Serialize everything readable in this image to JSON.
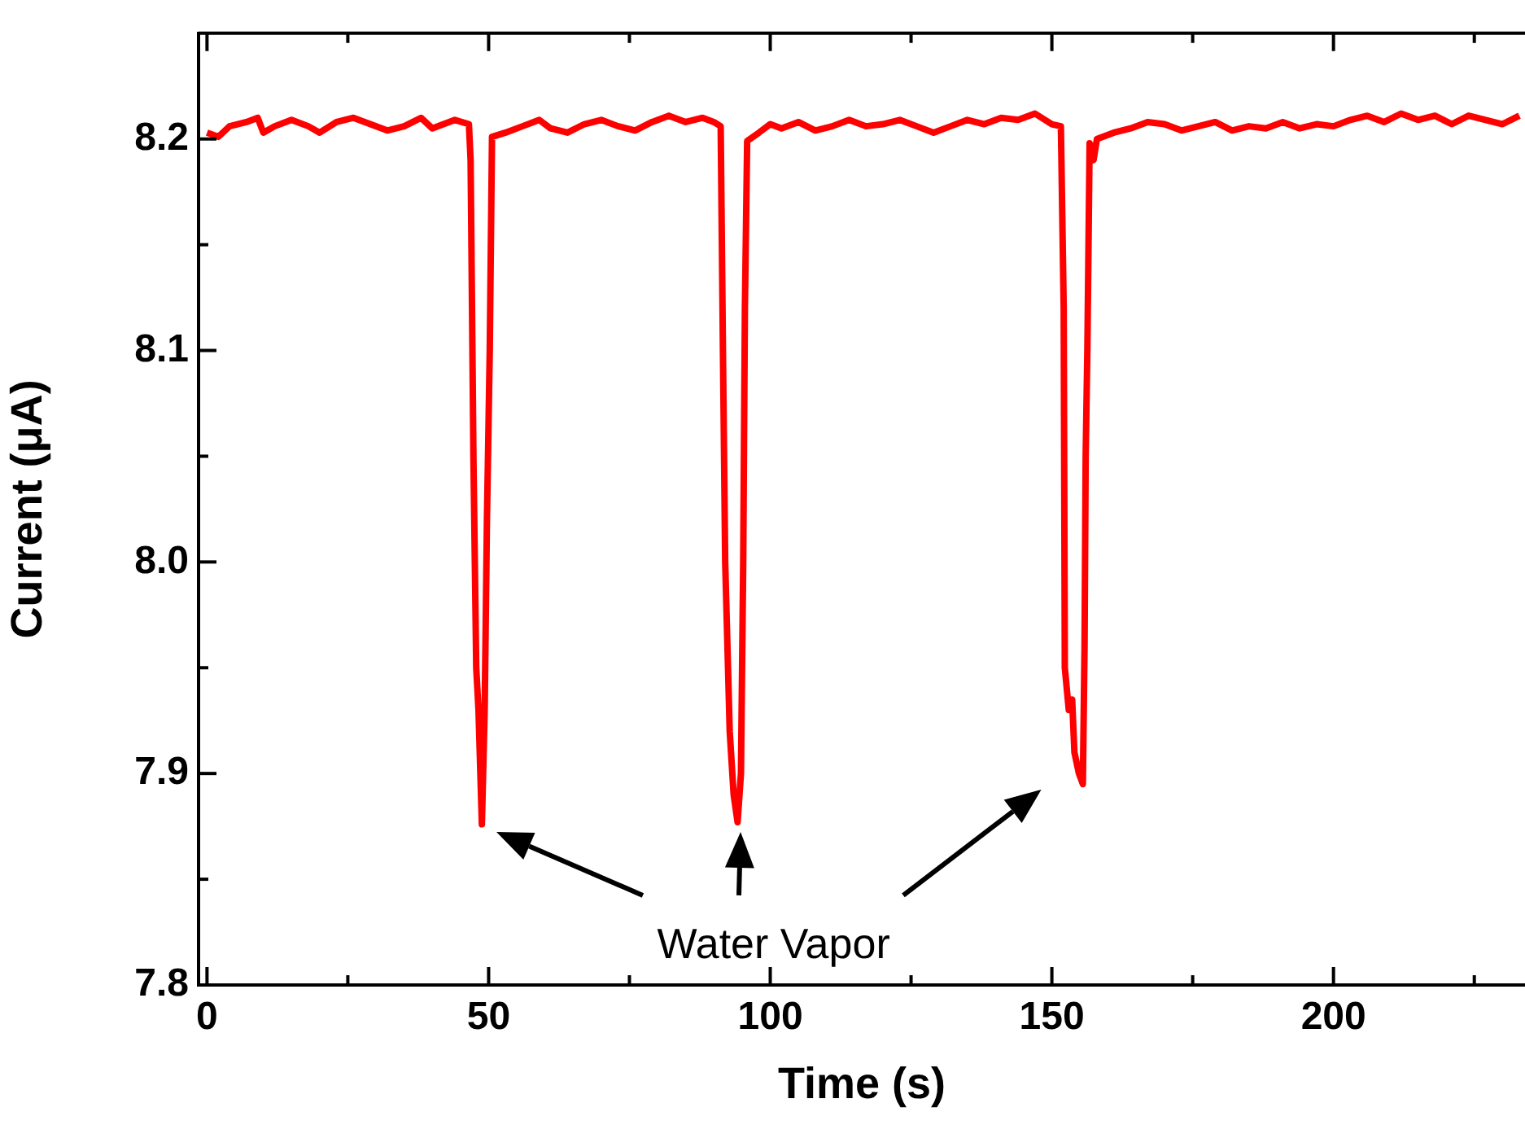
{
  "chart_data": {
    "type": "line",
    "xlabel": "Time (s)",
    "ylabel": "Current (μA)",
    "annotations": [
      "Water Vapor"
    ],
    "xlim": [
      -1.5,
      234
    ],
    "ylim": [
      7.8,
      8.25
    ],
    "xticks": [
      0,
      {
        "value": 25,
        "label": null
      },
      50,
      {
        "value": 75,
        "label": null
      },
      100,
      {
        "value": 125,
        "label": null
      },
      150,
      {
        "value": 175,
        "label": null
      },
      200,
      {
        "value": 225,
        "label": null
      }
    ],
    "yticks": [
      {
        "value": 7.8,
        "label": "7.8"
      },
      {
        "value": 7.85,
        "label": null
      },
      {
        "value": 7.9,
        "label": "7.9"
      },
      {
        "value": 7.95,
        "label": null
      },
      {
        "value": 8.0,
        "label": "8.0"
      },
      {
        "value": 8.05,
        "label": null
      },
      {
        "value": 8.1,
        "label": "8.1"
      },
      {
        "value": 8.15,
        "label": null
      },
      {
        "value": 8.2,
        "label": "8.2"
      }
    ],
    "grid": false,
    "legend": false,
    "marker": "none",
    "line_style": "solid",
    "x": [
      0,
      2,
      4,
      7,
      9,
      10,
      12,
      15,
      18,
      20,
      23,
      26,
      29,
      32,
      35,
      38,
      40,
      42,
      44,
      46.5,
      46.8,
      47.3,
      47.8,
      48.2,
      48.8,
      49.3,
      49.7,
      50.2,
      50.6,
      53,
      56,
      59,
      61,
      64,
      67,
      70,
      73,
      76,
      79,
      82,
      85,
      88,
      90,
      91.2,
      91.6,
      92,
      92.8,
      93.5,
      94.2,
      94.8,
      95.2,
      95.5,
      95.9,
      98,
      100,
      102,
      105,
      108,
      111,
      114,
      117,
      120,
      123,
      126,
      129,
      132,
      135,
      138,
      141,
      144,
      147,
      150,
      151.6,
      152.1,
      152.3,
      153,
      153.6,
      154,
      154.8,
      155.5,
      155.8,
      156,
      156.3,
      156.7,
      157.4,
      158,
      161,
      164,
      167,
      170,
      173,
      176,
      179,
      182,
      185,
      188,
      191,
      194,
      197,
      200,
      203,
      206,
      209,
      212,
      215,
      218,
      221,
      224,
      227,
      230,
      233
    ],
    "series": [
      {
        "color": "#ff0000",
        "values": [
          8.203,
          8.201,
          8.206,
          8.208,
          8.21,
          8.203,
          8.206,
          8.209,
          8.206,
          8.203,
          8.208,
          8.21,
          8.207,
          8.204,
          8.206,
          8.21,
          8.205,
          8.207,
          8.209,
          8.207,
          8.19,
          8.05,
          7.95,
          7.93,
          7.876,
          7.93,
          8.02,
          8.1,
          8.201,
          8.203,
          8.206,
          8.209,
          8.205,
          8.203,
          8.207,
          8.209,
          8.206,
          8.204,
          8.208,
          8.211,
          8.208,
          8.21,
          8.208,
          8.206,
          8.1,
          8.0,
          7.92,
          7.89,
          7.877,
          7.9,
          8.0,
          8.12,
          8.199,
          8.203,
          8.207,
          8.205,
          8.208,
          8.204,
          8.206,
          8.209,
          8.206,
          8.207,
          8.209,
          8.206,
          8.203,
          8.206,
          8.209,
          8.207,
          8.21,
          8.209,
          8.212,
          8.207,
          8.206,
          8.12,
          7.95,
          7.93,
          7.935,
          7.91,
          7.9,
          7.895,
          7.96,
          8.05,
          8.1,
          8.198,
          8.19,
          8.2,
          8.203,
          8.205,
          8.208,
          8.207,
          8.204,
          8.206,
          8.208,
          8.204,
          8.206,
          8.205,
          8.208,
          8.205,
          8.207,
          8.206,
          8.209,
          8.211,
          8.208,
          8.212,
          8.209,
          8.211,
          8.207,
          8.211,
          8.209,
          8.207,
          8.211
        ]
      }
    ]
  }
}
